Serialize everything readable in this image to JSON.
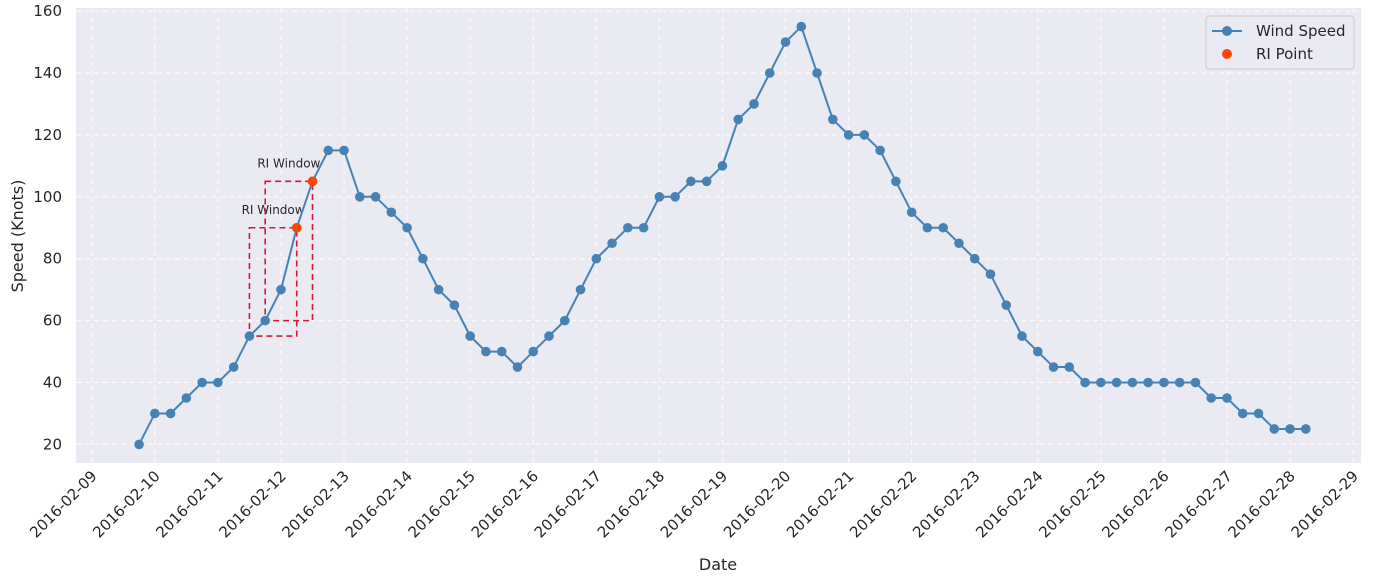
{
  "chart_data": {
    "type": "line",
    "xlabel": "Date",
    "ylabel": "Speed (Knots)",
    "x_ticks": [
      "2016-02-09",
      "2016-02-10",
      "2016-02-11",
      "2016-02-12",
      "2016-02-13",
      "2016-02-14",
      "2016-02-15",
      "2016-02-16",
      "2016-02-17",
      "2016-02-18",
      "2016-02-19",
      "2016-02-20",
      "2016-02-21",
      "2016-02-22",
      "2016-02-23",
      "2016-02-24",
      "2016-02-25",
      "2016-02-26",
      "2016-02-27",
      "2016-02-28",
      "2016-02-29"
    ],
    "y_ticks": [
      20,
      40,
      60,
      80,
      100,
      120,
      140,
      160
    ],
    "xlim": [
      "2016-02-08 18:00",
      "2016-02-29 03:00"
    ],
    "ylim": [
      14,
      161
    ],
    "grid": true,
    "legend_placement": "top-right",
    "series": [
      {
        "name": "Wind Speed",
        "color": "#4682b4",
        "marker": "circle",
        "x": [
          "2016-02-09 18:00",
          "2016-02-10 00:00",
          "2016-02-10 06:00",
          "2016-02-10 12:00",
          "2016-02-10 18:00",
          "2016-02-11 00:00",
          "2016-02-11 06:00",
          "2016-02-11 12:00",
          "2016-02-11 18:00",
          "2016-02-12 00:00",
          "2016-02-12 06:00",
          "2016-02-12 12:00",
          "2016-02-12 18:00",
          "2016-02-13 00:00",
          "2016-02-13 06:00",
          "2016-02-13 12:00",
          "2016-02-13 18:00",
          "2016-02-14 00:00",
          "2016-02-14 06:00",
          "2016-02-14 12:00",
          "2016-02-14 18:00",
          "2016-02-15 00:00",
          "2016-02-15 06:00",
          "2016-02-15 12:00",
          "2016-02-15 18:00",
          "2016-02-16 00:00",
          "2016-02-16 06:00",
          "2016-02-16 12:00",
          "2016-02-16 18:00",
          "2016-02-17 00:00",
          "2016-02-17 06:00",
          "2016-02-17 12:00",
          "2016-02-17 18:00",
          "2016-02-18 00:00",
          "2016-02-18 06:00",
          "2016-02-18 12:00",
          "2016-02-18 18:00",
          "2016-02-19 00:00",
          "2016-02-19 06:00",
          "2016-02-19 12:00",
          "2016-02-19 18:00",
          "2016-02-20 00:00",
          "2016-02-20 06:00",
          "2016-02-20 12:00",
          "2016-02-20 18:00",
          "2016-02-21 00:00",
          "2016-02-21 06:00",
          "2016-02-21 12:00",
          "2016-02-21 18:00",
          "2016-02-22 00:00",
          "2016-02-22 06:00",
          "2016-02-22 12:00",
          "2016-02-22 18:00",
          "2016-02-23 00:00",
          "2016-02-23 06:00",
          "2016-02-23 12:00",
          "2016-02-23 18:00",
          "2016-02-24 00:00",
          "2016-02-24 06:00",
          "2016-02-24 12:00",
          "2016-02-24 18:00",
          "2016-02-25 00:00",
          "2016-02-25 06:00",
          "2016-02-25 12:00",
          "2016-02-25 18:00",
          "2016-02-26 00:00",
          "2016-02-26 06:00",
          "2016-02-26 12:00",
          "2016-02-26 18:00",
          "2016-02-27 00:00",
          "2016-02-27 06:00",
          "2016-02-27 12:00",
          "2016-02-27 18:00",
          "2016-02-28 00:00",
          "2016-02-28 06:00"
        ],
        "y": [
          20,
          30,
          30,
          35,
          40,
          40,
          45,
          55,
          60,
          70,
          90,
          105,
          115,
          115,
          100,
          100,
          95,
          90,
          80,
          70,
          65,
          55,
          50,
          50,
          45,
          50,
          55,
          60,
          70,
          80,
          85,
          90,
          90,
          100,
          100,
          105,
          105,
          110,
          125,
          130,
          140,
          150,
          155,
          140,
          125,
          120,
          120,
          115,
          105,
          95,
          90,
          90,
          85,
          80,
          75,
          65,
          55,
          50,
          45,
          45,
          40,
          40,
          40,
          40,
          40,
          40,
          40,
          40,
          35,
          35,
          30,
          30,
          25,
          25,
          25
        ]
      },
      {
        "name": "RI Point",
        "color": "#ff4500",
        "marker": "circle",
        "x": [
          "2016-02-12 06:00",
          "2016-02-12 12:00"
        ],
        "y": [
          90,
          105
        ]
      }
    ],
    "annotations": [
      {
        "text": "RI Window",
        "x_start": "2016-02-11 12:00",
        "x_end": "2016-02-12 06:00",
        "y_low": 55,
        "y_high": 90
      },
      {
        "text": "RI Window",
        "x_start": "2016-02-11 18:00",
        "x_end": "2016-02-12 12:00",
        "y_low": 60,
        "y_high": 105
      }
    ],
    "annotation_color": "#dc143c"
  }
}
